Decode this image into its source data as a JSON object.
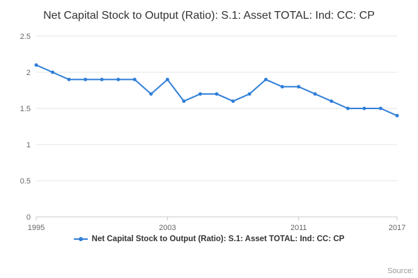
{
  "source": "Source:",
  "chart_data": {
    "type": "line",
    "title": "Net Capital Stock to Output (Ratio): S.1: Asset TOTAL: Ind: CC: CP",
    "xlabel": "",
    "ylabel": "",
    "x": [
      1995,
      1996,
      1997,
      1998,
      1999,
      2000,
      2001,
      2002,
      2003,
      2004,
      2005,
      2006,
      2007,
      2008,
      2009,
      2010,
      2011,
      2012,
      2013,
      2014,
      2015,
      2016,
      2017
    ],
    "series": [
      {
        "name": "Net Capital Stock to Output (Ratio): S.1: Asset TOTAL: Ind: CC: CP",
        "color": "#2f7ed8",
        "values": [
          2.1,
          2.0,
          1.9,
          1.9,
          1.9,
          1.9,
          1.9,
          1.7,
          1.9,
          1.6,
          1.7,
          1.7,
          1.6,
          1.7,
          1.9,
          1.8,
          1.8,
          1.7,
          1.6,
          1.5,
          1.5,
          1.5,
          1.4
        ]
      }
    ],
    "ylim": [
      0,
      2.5
    ],
    "yticks": [
      0,
      0.5,
      1,
      1.5,
      2,
      2.5
    ],
    "xticks": [
      1995,
      2003,
      2011,
      2017
    ],
    "grid": "horizontal",
    "grid_color": "#e6e6e6",
    "axis_color": "#c8c8c8",
    "tick_label_color": "#666666",
    "legend_position": "bottom",
    "marker": "circle"
  }
}
